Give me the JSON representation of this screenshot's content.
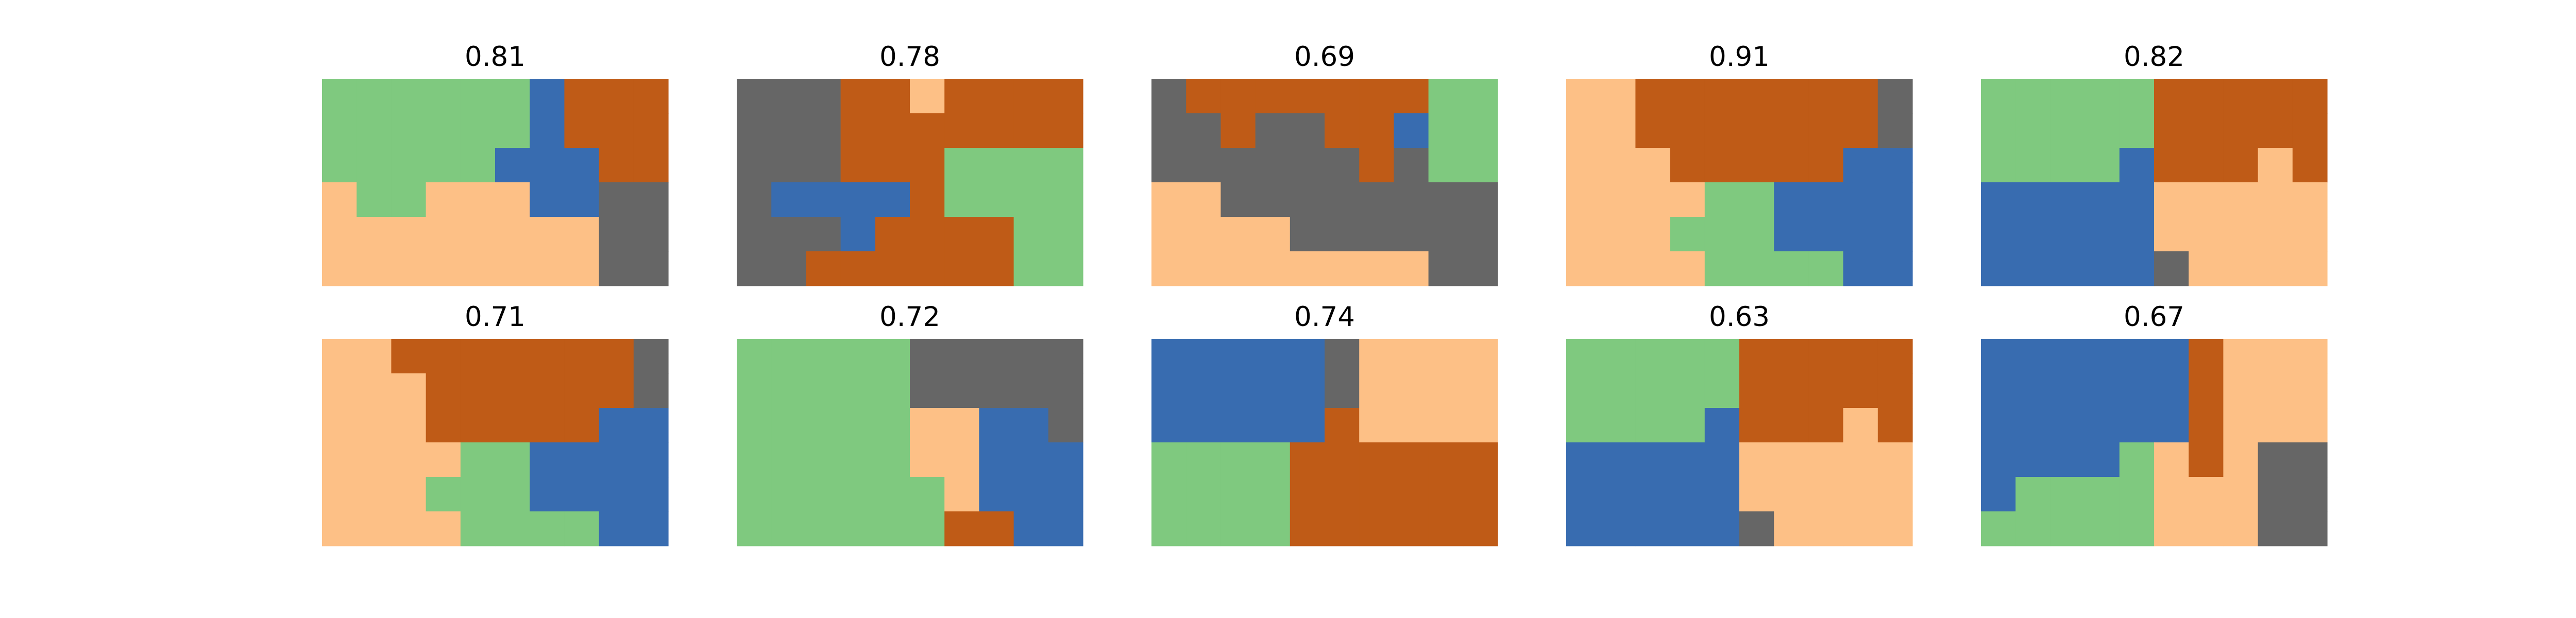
{
  "chart_data": {
    "type": "heatmap",
    "grid": {
      "cols": 10,
      "rows": 6
    },
    "legend": "none",
    "colors": {
      "G": "#7fc97f",
      "B": "#386cb0",
      "O": "#bf5b17",
      "P": "#fdc086",
      "D": "#666666"
    },
    "panels": [
      {
        "title": "0.81",
        "cells": [
          "GGGGGGBOOO",
          "GGGGGGBOOO",
          "GGGGGBBBOO",
          "PGGPPPBBDD",
          "PPPPPPPPDD",
          "PPPPPPPPDD"
        ]
      },
      {
        "title": "0.78",
        "cells": [
          "DDDOOPOOOO",
          "DDDOOOOOOO",
          "DDDOOOGGGG",
          "DBBBBOGGGG",
          "DDDBOOOOGG",
          "DDOOOOOOGG"
        ]
      },
      {
        "title": "0.69",
        "cells": [
          "DOOOOOOOGG",
          "DDODDOOBGG",
          "DDDDDDODGG",
          "PPDDDDDDDD",
          "PPPPDDDDDD",
          "PPPPPPPPDD"
        ]
      },
      {
        "title": "0.91",
        "cells": [
          "PPOOOOOOOD",
          "PPOOOOOOOD",
          "PPPOOOOOBB",
          "PPPPGGBBBB",
          "PPPGGGBBBB",
          "PPPPGGGGBB"
        ]
      },
      {
        "title": "0.82",
        "cells": [
          "GGGGGOOOOO",
          "GGGGGOOOOO",
          "GGGGBOOOPO",
          "BBBBBPPPPP",
          "BBBBBPPPPP",
          "BBBBBDPPPP"
        ]
      },
      {
        "title": "0.71",
        "cells": [
          "PPOOOOOOOD",
          "PPPOOOOOOD",
          "PPPOOOOOBB",
          "PPPPGGBBBB",
          "PPPGGGBBBB",
          "PPPPGGGGBB"
        ]
      },
      {
        "title": "0.72",
        "cells": [
          "GGGGGDDDDD",
          "GGGGGDDDDD",
          "GGGGGPPBBD",
          "GGGGGPPBBB",
          "GGGGGGPBBB",
          "GGGGGGOOBB"
        ]
      },
      {
        "title": "0.74",
        "cells": [
          "BBBBBDPPPP",
          "BBBBBDPPPP",
          "BBBBBOPPPP",
          "GGGGOOOOOO",
          "GGGGOOOOOO",
          "GGGGOOOOOO"
        ]
      },
      {
        "title": "0.63",
        "cells": [
          "GGGGGOOOOO",
          "GGGGGOOOOO",
          "GGGGBOOOPO",
          "BBBBBPPPPP",
          "BBBBBPPPPP",
          "BBBBBDPPPP"
        ]
      },
      {
        "title": "0.67",
        "cells": [
          "BBBBBBOPPP",
          "BBBBBBOPPP",
          "BBBBBBOPPP",
          "BBBBGPOPDD",
          "BGGGGPPPDD",
          "GGGGGPPPDD"
        ]
      }
    ]
  }
}
